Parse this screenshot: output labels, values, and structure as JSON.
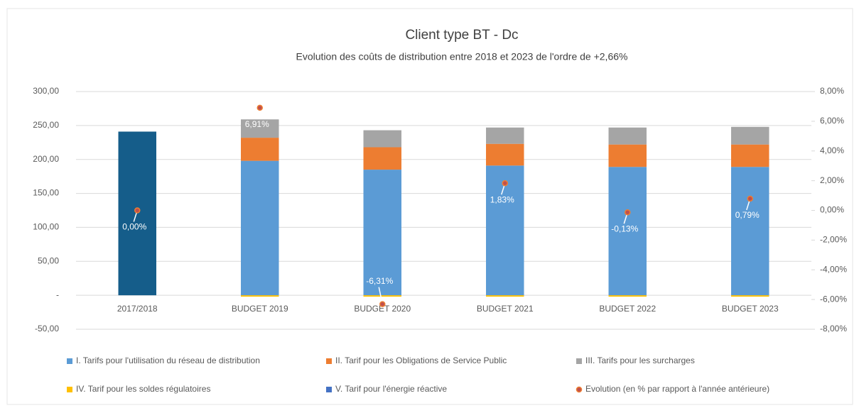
{
  "chart_data": {
    "type": "bar",
    "stacked": true,
    "title": "Client type BT - Dc",
    "subtitle": "Evolution des coûts de distribution entre 2018 et 2023  de l'ordre de +2,66%",
    "categories": [
      "2017/2018",
      "BUDGET 2019",
      "BUDGET 2020",
      "BUDGET 2021",
      "BUDGET 2022",
      "BUDGET 2023"
    ],
    "ylim": [
      -50,
      300
    ],
    "yticks": [
      {
        "value": -50,
        "label": "-50,00"
      },
      {
        "value": 0,
        "label": "-"
      },
      {
        "value": 50,
        "label": "50,00"
      },
      {
        "value": 100,
        "label": "100,00"
      },
      {
        "value": 150,
        "label": "150,00"
      },
      {
        "value": 200,
        "label": "200,00"
      },
      {
        "value": 250,
        "label": "250,00"
      },
      {
        "value": 300,
        "label": "300,00"
      }
    ],
    "y2lim": [
      -8,
      8
    ],
    "y2ticks": [
      {
        "value": -8,
        "label": "-8,00%"
      },
      {
        "value": -6,
        "label": "-6,00%"
      },
      {
        "value": -4,
        "label": "-4,00%"
      },
      {
        "value": -2,
        "label": "-2,00%"
      },
      {
        "value": 0,
        "label": "0,00%"
      },
      {
        "value": 2,
        "label": "2,00%"
      },
      {
        "value": 4,
        "label": "4,00%"
      },
      {
        "value": 6,
        "label": "6,00%"
      },
      {
        "value": 8,
        "label": "8,00%"
      }
    ],
    "grid": true,
    "series": [
      {
        "name": "I. Tarifs pour l'utilisation du réseau de distribution",
        "color": "#5b9bd5",
        "point_colors": [
          "#155d8a",
          "#5b9bd5",
          "#5b9bd5",
          "#5b9bd5",
          "#5b9bd5",
          "#5b9bd5"
        ],
        "values": [
          241,
          198,
          185,
          191,
          189,
          189
        ]
      },
      {
        "name": "II. Tarif pour les Obligations de Service Public",
        "color": "#ed7d31",
        "values": [
          0,
          34,
          33,
          32,
          33,
          33
        ]
      },
      {
        "name": "III. Tarifs pour les surcharges",
        "color": "#a5a5a5",
        "values": [
          0,
          27,
          25,
          24,
          25,
          26
        ]
      },
      {
        "name": "IV. Tarif pour les soldes régulatoires",
        "color": "#ffc000",
        "values": [
          0,
          -2,
          -2,
          -2,
          -2,
          -2
        ]
      },
      {
        "name": "V. Tarif pour l'énergie réactive",
        "color": "#4472c4",
        "values": [
          0,
          0,
          0,
          0,
          0,
          0
        ]
      },
      {
        "name": "Evolution (en % par rapport à l'année antérieure)",
        "color": "#c0504d",
        "type": "scatter",
        "axis": "y2",
        "values": [
          0,
          6.91,
          -6.31,
          1.83,
          -0.13,
          0.79
        ],
        "value_labels": [
          "0,00%",
          "6,91%",
          "-6,31%",
          "1,83%",
          "-0,13%",
          "0,79%"
        ]
      }
    ]
  }
}
